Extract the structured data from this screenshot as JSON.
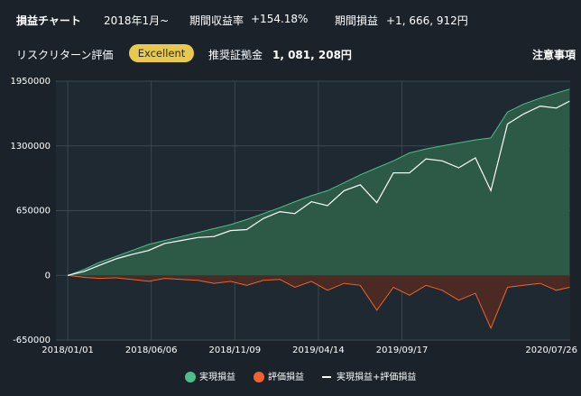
{
  "header": {
    "title": "損益チャート",
    "period": "2018年1月~",
    "return_label": "期間収益率",
    "return_value": "+154.18%",
    "pl_label": "期間損益",
    "pl_value": "+1, 666, 912円",
    "rating_label": "リスクリターン評価",
    "rating": "Excellent",
    "margin_label": "推奨証拠金",
    "margin_value": "1, 081, 208円",
    "notes": "注意事項"
  },
  "chart_data": {
    "type": "area-line",
    "x": [
      "2018/01/01",
      "2018/02/01",
      "2018/03/01",
      "2018/04/01",
      "2018/05/01",
      "2018/06/01",
      "2018/07/01",
      "2018/08/01",
      "2018/09/01",
      "2018/10/01",
      "2018/11/01",
      "2018/12/01",
      "2019/01/01",
      "2019/02/01",
      "2019/03/01",
      "2019/04/01",
      "2019/05/01",
      "2019/06/01",
      "2019/07/01",
      "2019/08/01",
      "2019/09/01",
      "2019/10/01",
      "2019/11/01",
      "2019/12/01",
      "2020/01/01",
      "2020/02/01",
      "2020/03/01",
      "2020/04/01",
      "2020/05/01",
      "2020/06/01",
      "2020/07/01",
      "2020/07/26"
    ],
    "series": [
      {
        "name": "実現損益",
        "color": "#4dbd8a",
        "fill": "#2c5a47",
        "values": [
          0,
          60000,
          130000,
          190000,
          250000,
          310000,
          350000,
          390000,
          430000,
          470000,
          510000,
          560000,
          620000,
          680000,
          740000,
          800000,
          850000,
          930000,
          1010000,
          1080000,
          1150000,
          1230000,
          1270000,
          1300000,
          1330000,
          1360000,
          1380000,
          1640000,
          1720000,
          1780000,
          1830000,
          1870000
        ]
      },
      {
        "name": "評価損益",
        "color": "#f0622f",
        "fill": "#4a2a22",
        "values": [
          0,
          -20000,
          -30000,
          -25000,
          -40000,
          -60000,
          -30000,
          -40000,
          -50000,
          -80000,
          -60000,
          -100000,
          -50000,
          -40000,
          -120000,
          -60000,
          -150000,
          -80000,
          -100000,
          -350000,
          -120000,
          -200000,
          -100000,
          -150000,
          -250000,
          -180000,
          -530000,
          -120000,
          -100000,
          -80000,
          -150000,
          -120000
        ]
      },
      {
        "name": "実現損益+評価損益",
        "color": "#ffffff",
        "values": [
          0,
          40000,
          100000,
          165000,
          210000,
          250000,
          320000,
          350000,
          380000,
          390000,
          450000,
          460000,
          570000,
          640000,
          620000,
          740000,
          700000,
          850000,
          910000,
          730000,
          1030000,
          1030000,
          1170000,
          1150000,
          1080000,
          1180000,
          850000,
          1520000,
          1620000,
          1700000,
          1680000,
          1750000
        ]
      }
    ],
    "xlim": [
      "2017/12/10",
      "2020/07/27"
    ],
    "xticks": [
      "2018/01/01",
      "2018/06/06",
      "2018/11/09",
      "2019/04/14",
      "2019/09/17",
      "2020/07/26"
    ],
    "ylim": [
      -650000,
      1950000
    ],
    "yticks": [
      -650000,
      0,
      650000,
      1300000,
      1950000
    ],
    "grid": true
  }
}
